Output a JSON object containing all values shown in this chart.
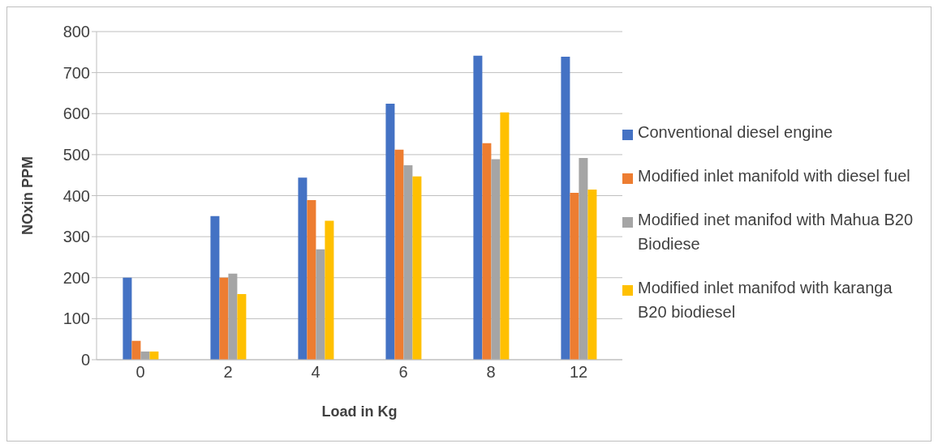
{
  "chart_data": {
    "type": "bar",
    "xlabel": "Load in Kg",
    "ylabel": "NOxin PPM",
    "categories": [
      "0",
      "2",
      "4",
      "6",
      "8",
      "12"
    ],
    "series": [
      {
        "name": "Conventional diesel engine",
        "color": "#4472c4",
        "values": [
          200,
          350,
          444,
          624,
          741,
          739
        ]
      },
      {
        "name": "Modified inlet manifold with diesel fuel",
        "color": "#ed7d31",
        "values": [
          46,
          200,
          389,
          512,
          528,
          407
        ]
      },
      {
        "name": "Modified inet manifod with Mahua B20 Biodiese",
        "color": "#a5a5a5",
        "values": [
          20,
          210,
          269,
          474,
          489,
          492
        ]
      },
      {
        "name": "Modified inlet manifod with karanga B20 biodiesel",
        "color": "#ffc000",
        "values": [
          20,
          160,
          339,
          447,
          603,
          415
        ]
      }
    ],
    "ylim": [
      0,
      800
    ],
    "yticks": [
      0,
      100,
      200,
      300,
      400,
      500,
      600,
      700,
      800
    ],
    "grid": "y",
    "legend": "right"
  }
}
